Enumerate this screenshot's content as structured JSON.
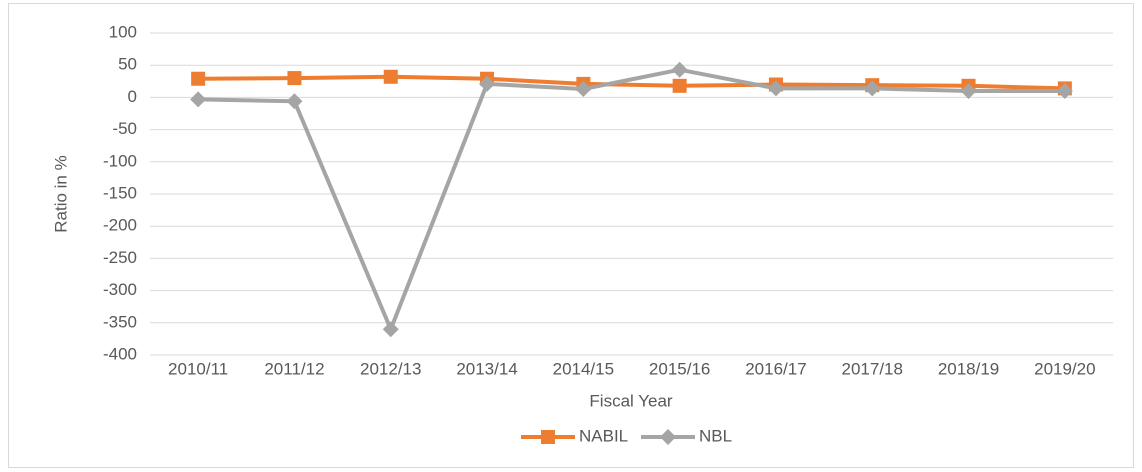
{
  "chart_data": {
    "type": "line",
    "x_label": "Fiscal Year",
    "y_label": "Ratio in %",
    "categories": [
      "2010/11",
      "2011/12",
      "2012/13",
      "2013/14",
      "2014/15",
      "2015/16",
      "2016/17",
      "2017/18",
      "2018/19",
      "2019/20"
    ],
    "series": [
      {
        "name": "NABIL",
        "color": "#ed7d31",
        "marker": "square",
        "values": [
          29,
          30,
          32,
          29,
          21,
          18,
          20,
          19,
          18,
          14
        ]
      },
      {
        "name": "NBL",
        "color": "#a5a5a5",
        "marker": "diamond",
        "values": [
          -3,
          -6,
          -360,
          21,
          13,
          43,
          14,
          14,
          10,
          10
        ]
      }
    ],
    "ylim": [
      -400,
      100
    ],
    "yticks": [
      100,
      50,
      0,
      -50,
      -100,
      -150,
      -200,
      -250,
      -300,
      -350,
      -400
    ],
    "grid": true,
    "legend": "bottom"
  }
}
